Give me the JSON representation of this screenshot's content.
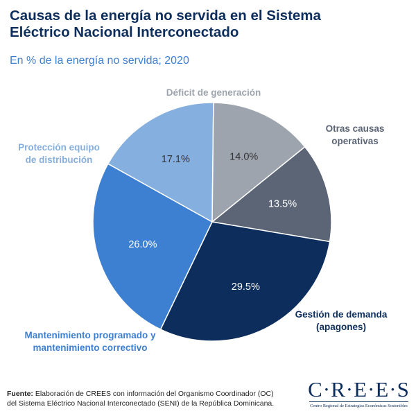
{
  "title_line1": "Causas de la energía no servida en el Sistema",
  "title_line2": "Eléctrico Nacional Interconectado",
  "subtitle": "En % de la energía no servida; 2020",
  "chart_data": {
    "type": "pie",
    "title": "Causas de la energía no servida en el Sistema Eléctrico Nacional Interconectado",
    "subtitle": "En % de la energía no servida; 2020",
    "slices": [
      {
        "label_lines": [
          "Otras causas",
          "operativas"
        ],
        "value": 13.5,
        "value_label": "13.5%",
        "color": "#5b6576",
        "label_color": "#5b6576",
        "text_color": "#ffffff"
      },
      {
        "label_lines": [
          "Gestión de demanda",
          "(apagones)"
        ],
        "value": 29.5,
        "value_label": "29.5%",
        "color": "#0d2e5c",
        "label_color": "#0d2e5c",
        "text_color": "#ffffff"
      },
      {
        "label_lines": [
          "Mantenimiento programado y",
          "mantenimiento correctivo"
        ],
        "value": 26.0,
        "value_label": "26.0%",
        "color": "#3d7fd0",
        "label_color": "#3d7fd0",
        "text_color": "#ffffff"
      },
      {
        "label_lines": [
          "Protección equipo",
          "de distribución"
        ],
        "value": 17.1,
        "value_label": "17.1%",
        "color": "#85afde",
        "label_color": "#85afde",
        "text_color": "#333333"
      },
      {
        "label_lines": [
          "Déficit de generación"
        ],
        "value": 14.0,
        "value_label": "14.0%",
        "color": "#9da4ae",
        "label_color": "#9da4ae",
        "text_color": "#333333"
      }
    ]
  },
  "footer": {
    "label": "Fuente:",
    "text": " Elaboración de CREES con información del Organismo Coordinador (OC) del Sistema Eléctrico Nacional Interconectado (SENI) de la República Dominicana."
  },
  "logo": {
    "name": "C·R·E·E·S",
    "tagline": "Centro Regional de Estrategias Económicas Sostenibles"
  }
}
